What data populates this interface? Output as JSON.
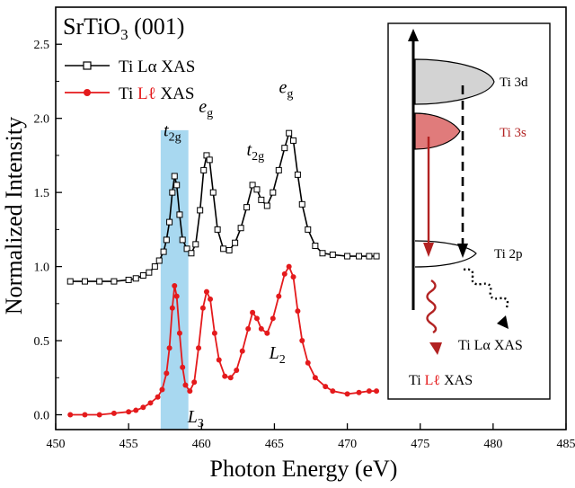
{
  "chart_data": {
    "type": "line",
    "title_parts": {
      "base": "SrTiO",
      "sub": "3",
      "rest": " (001)"
    },
    "xlabel": "Photon Energy (eV)",
    "ylabel": "Normalized Intensity",
    "xlim": [
      450,
      485
    ],
    "ylim": [
      -0.1,
      2.75
    ],
    "xticks": [
      450,
      455,
      460,
      465,
      470,
      475,
      480,
      485
    ],
    "yticks": [
      0.0,
      0.5,
      1.0,
      1.5,
      2.0,
      2.5
    ],
    "grid": false,
    "legend_position": "top-left",
    "highlight_band": {
      "x0": 457.2,
      "x1": 459.1,
      "color": "#a8d8f0"
    },
    "series": [
      {
        "name_parts": {
          "pre": "Ti L",
          "mid": "α",
          "post": " XAS"
        },
        "color": "#000000",
        "marker": "open-square",
        "points": [
          [
            451,
            0.9
          ],
          [
            452,
            0.9
          ],
          [
            453,
            0.9
          ],
          [
            454,
            0.9
          ],
          [
            455,
            0.91
          ],
          [
            455.5,
            0.92
          ],
          [
            456,
            0.94
          ],
          [
            456.4,
            0.96
          ],
          [
            456.8,
            1.0
          ],
          [
            457.1,
            1.04
          ],
          [
            457.4,
            1.1
          ],
          [
            457.6,
            1.18
          ],
          [
            457.8,
            1.3
          ],
          [
            458.0,
            1.5
          ],
          [
            458.15,
            1.61
          ],
          [
            458.3,
            1.55
          ],
          [
            458.5,
            1.35
          ],
          [
            458.7,
            1.18
          ],
          [
            459.0,
            1.12
          ],
          [
            459.3,
            1.09
          ],
          [
            459.6,
            1.15
          ],
          [
            459.9,
            1.38
          ],
          [
            460.15,
            1.65
          ],
          [
            460.35,
            1.75
          ],
          [
            460.55,
            1.72
          ],
          [
            460.8,
            1.5
          ],
          [
            461.1,
            1.25
          ],
          [
            461.5,
            1.12
          ],
          [
            461.9,
            1.11
          ],
          [
            462.3,
            1.16
          ],
          [
            462.7,
            1.26
          ],
          [
            463.1,
            1.4
          ],
          [
            463.5,
            1.55
          ],
          [
            463.8,
            1.52
          ],
          [
            464.1,
            1.45
          ],
          [
            464.5,
            1.41
          ],
          [
            464.9,
            1.5
          ],
          [
            465.3,
            1.65
          ],
          [
            465.7,
            1.8
          ],
          [
            466.0,
            1.9
          ],
          [
            466.3,
            1.85
          ],
          [
            466.6,
            1.62
          ],
          [
            466.9,
            1.42
          ],
          [
            467.3,
            1.25
          ],
          [
            467.8,
            1.14
          ],
          [
            468.3,
            1.09
          ],
          [
            469,
            1.08
          ],
          [
            470,
            1.07
          ],
          [
            470.8,
            1.07
          ],
          [
            471.5,
            1.07
          ],
          [
            472,
            1.07
          ]
        ]
      },
      {
        "name_parts": {
          "pre": "Ti ",
          "mid": "Lℓ",
          "post": " XAS"
        },
        "mid_color": "#e41a1c",
        "color": "#e41a1c",
        "marker": "filled-circle",
        "points": [
          [
            451,
            0.0
          ],
          [
            452,
            0.0
          ],
          [
            453,
            0.0
          ],
          [
            454,
            0.01
          ],
          [
            455,
            0.02
          ],
          [
            455.5,
            0.03
          ],
          [
            456,
            0.05
          ],
          [
            456.5,
            0.08
          ],
          [
            457,
            0.12
          ],
          [
            457.3,
            0.17
          ],
          [
            457.6,
            0.28
          ],
          [
            457.8,
            0.45
          ],
          [
            458.0,
            0.72
          ],
          [
            458.15,
            0.87
          ],
          [
            458.3,
            0.8
          ],
          [
            458.5,
            0.55
          ],
          [
            458.7,
            0.32
          ],
          [
            458.9,
            0.2
          ],
          [
            459.2,
            0.16
          ],
          [
            459.5,
            0.22
          ],
          [
            459.8,
            0.45
          ],
          [
            460.1,
            0.72
          ],
          [
            460.35,
            0.83
          ],
          [
            460.6,
            0.78
          ],
          [
            460.9,
            0.55
          ],
          [
            461.2,
            0.37
          ],
          [
            461.6,
            0.26
          ],
          [
            462.0,
            0.25
          ],
          [
            462.4,
            0.3
          ],
          [
            462.8,
            0.43
          ],
          [
            463.2,
            0.58
          ],
          [
            463.5,
            0.69
          ],
          [
            463.8,
            0.65
          ],
          [
            464.1,
            0.58
          ],
          [
            464.5,
            0.55
          ],
          [
            464.9,
            0.65
          ],
          [
            465.3,
            0.8
          ],
          [
            465.7,
            0.95
          ],
          [
            466.0,
            1.0
          ],
          [
            466.3,
            0.93
          ],
          [
            466.6,
            0.7
          ],
          [
            466.9,
            0.5
          ],
          [
            467.3,
            0.35
          ],
          [
            467.8,
            0.25
          ],
          [
            468.5,
            0.19
          ],
          [
            469,
            0.16
          ],
          [
            470,
            0.14
          ],
          [
            470.8,
            0.15
          ],
          [
            471.5,
            0.16
          ],
          [
            472,
            0.16
          ]
        ]
      }
    ],
    "annotations": [
      {
        "base": "t",
        "sub": "2g",
        "x": 458.0,
        "y": 1.88
      },
      {
        "base": "e",
        "sub": "g",
        "x": 460.3,
        "y": 2.04
      },
      {
        "base": "t",
        "sub": "2g",
        "x": 463.7,
        "y": 1.75
      },
      {
        "base": "e",
        "sub": "g",
        "x": 465.8,
        "y": 2.17
      },
      {
        "base": "L",
        "sub": "3",
        "x": 459.6,
        "y": -0.05
      },
      {
        "base": "L",
        "sub": "2",
        "x": 465.2,
        "y": 0.38
      }
    ],
    "inset": {
      "levels": [
        "Ti 3d",
        "Ti 3s",
        "Ti 2p"
      ],
      "level_colors": [
        "#000000",
        "#b22222",
        "#000000"
      ],
      "outputs": [
        "Ti Lα XAS",
        "Ti Lℓ XAS"
      ],
      "output_highlight": "Lℓ"
    }
  }
}
